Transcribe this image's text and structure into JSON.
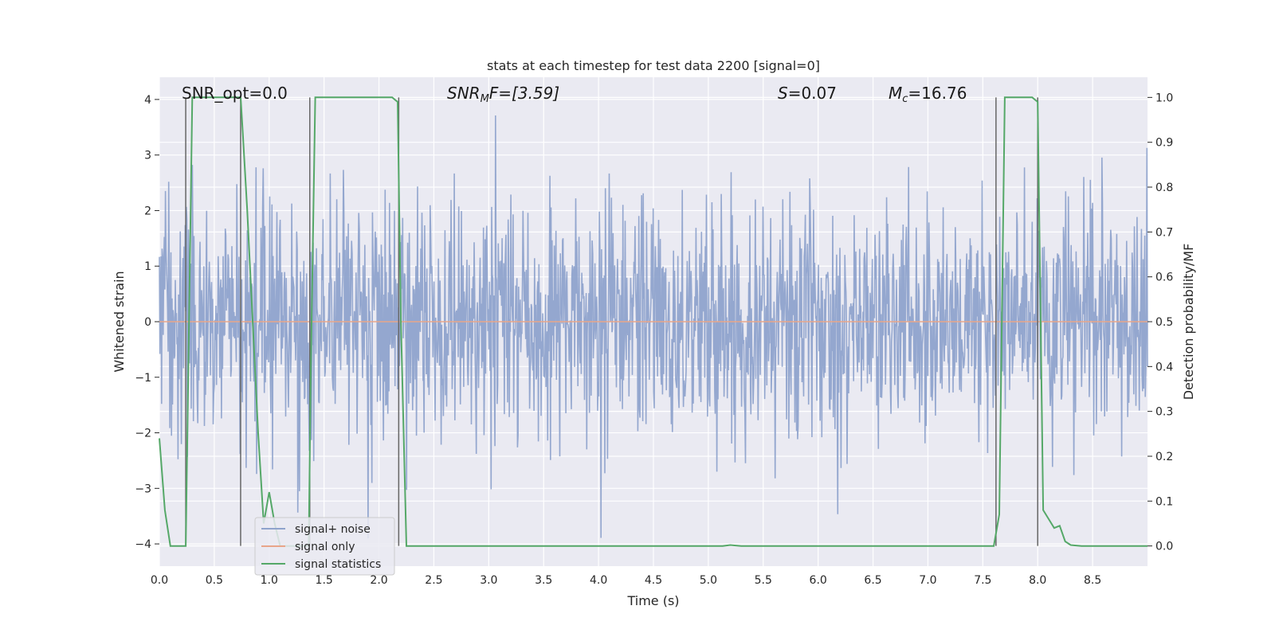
{
  "chart_data": {
    "type": "line",
    "title": "stats at each timestep for test data 2200 [signal=0]",
    "xlabel": "Time (s)",
    "ylabel_left": "Whitened strain",
    "ylabel_right": "Detection probability/MF",
    "xlim": [
      0.0,
      9.0
    ],
    "ylim_left": [
      -4.4,
      4.4
    ],
    "ylim_right": [
      -0.045,
      1.045
    ],
    "x_ticks": [
      0.0,
      0.5,
      1.0,
      1.5,
      2.0,
      2.5,
      3.0,
      3.5,
      4.0,
      4.5,
      5.0,
      5.5,
      6.0,
      6.5,
      7.0,
      7.5,
      8.0,
      8.5
    ],
    "x_tick_labels": [
      "0.0",
      "0.5",
      "1.0",
      "1.5",
      "2.0",
      "2.5",
      "3.0",
      "3.5",
      "4.0",
      "4.5",
      "5.0",
      "5.5",
      "6.0",
      "6.5",
      "7.0",
      "7.5",
      "8.0",
      "8.5"
    ],
    "y_left_ticks": [
      -4,
      -3,
      -2,
      -1,
      0,
      1,
      2,
      3,
      4
    ],
    "y_left_tick_labels": [
      "−4",
      "−3",
      "−2",
      "−1",
      "0",
      "1",
      "2",
      "3",
      "4"
    ],
    "y_right_ticks": [
      0.0,
      0.1,
      0.2,
      0.3,
      0.4,
      0.5,
      0.6,
      0.7,
      0.8,
      0.9,
      1.0
    ],
    "y_right_tick_labels": [
      "0.0",
      "0.1",
      "0.2",
      "0.3",
      "0.4",
      "0.5",
      "0.6",
      "0.7",
      "0.8",
      "0.9",
      "1.0"
    ],
    "grid": true,
    "legend_position": "lower-left",
    "annotations": {
      "snr_opt": "SNR_opt=0.0",
      "snr_mf_main": "SNR",
      "snr_mf_sub": "M",
      "snr_mf_rest": "F=[3.59]",
      "s_main": "S",
      "s_rest": "=0.07",
      "mc_main": "M",
      "mc_sub": "c",
      "mc_rest": "=16.76"
    },
    "series": [
      {
        "name": "signal+ noise",
        "axis": "left",
        "color": "#8fa3cc",
        "description_note": "noise samples",
        "values_summary": {
          "mean": 0.0,
          "typical_range": [
            -2.4,
            2.4
          ],
          "extremes": [
            -3.9,
            4.0
          ]
        }
      },
      {
        "name": "signal only",
        "axis": "left",
        "color": "#e8a58a",
        "x": [
          0.0,
          9.0
        ],
        "y": [
          0.0,
          0.0
        ]
      },
      {
        "name": "signal statistics",
        "axis": "right",
        "color": "#55a868",
        "x": [
          0.0,
          0.05,
          0.1,
          0.2,
          0.24,
          0.3,
          0.35,
          0.4,
          0.5,
          0.6,
          0.7,
          0.74,
          0.76,
          0.8,
          0.85,
          0.9,
          0.95,
          1.0,
          1.05,
          1.1,
          1.2,
          1.3,
          1.36,
          1.38,
          1.42,
          1.45,
          1.5,
          2.0,
          2.12,
          2.17,
          2.2,
          2.25,
          3.0,
          4.0,
          5.0,
          5.13,
          5.2,
          5.3,
          6.0,
          7.0,
          7.5,
          7.6,
          7.65,
          7.7,
          7.8,
          7.9,
          7.95,
          8.0,
          8.05,
          8.1,
          8.15,
          8.2,
          8.25,
          8.3,
          8.4,
          9.0
        ],
        "y": [
          0.24,
          0.08,
          0.0,
          0.0,
          0.0,
          1.0,
          1.0,
          1.0,
          1.0,
          1.0,
          1.0,
          1.0,
          0.92,
          0.75,
          0.5,
          0.25,
          0.05,
          0.12,
          0.05,
          0.0,
          0.0,
          0.0,
          0.0,
          0.4,
          1.0,
          1.0,
          1.0,
          1.0,
          1.0,
          0.99,
          0.5,
          0.0,
          0.0,
          0.0,
          0.0,
          0.0,
          0.002,
          0.0,
          0.0,
          0.0,
          0.0,
          0.0,
          0.07,
          1.0,
          1.0,
          1.0,
          1.0,
          0.99,
          0.08,
          0.06,
          0.04,
          0.045,
          0.01,
          0.002,
          0.0,
          0.0
        ]
      }
    ],
    "vertical_lines": {
      "color": "#666666",
      "x": [
        0.24,
        0.74,
        1.37,
        2.18,
        7.62,
        8.0
      ],
      "y_range_right": [
        0.0,
        1.0
      ]
    }
  }
}
